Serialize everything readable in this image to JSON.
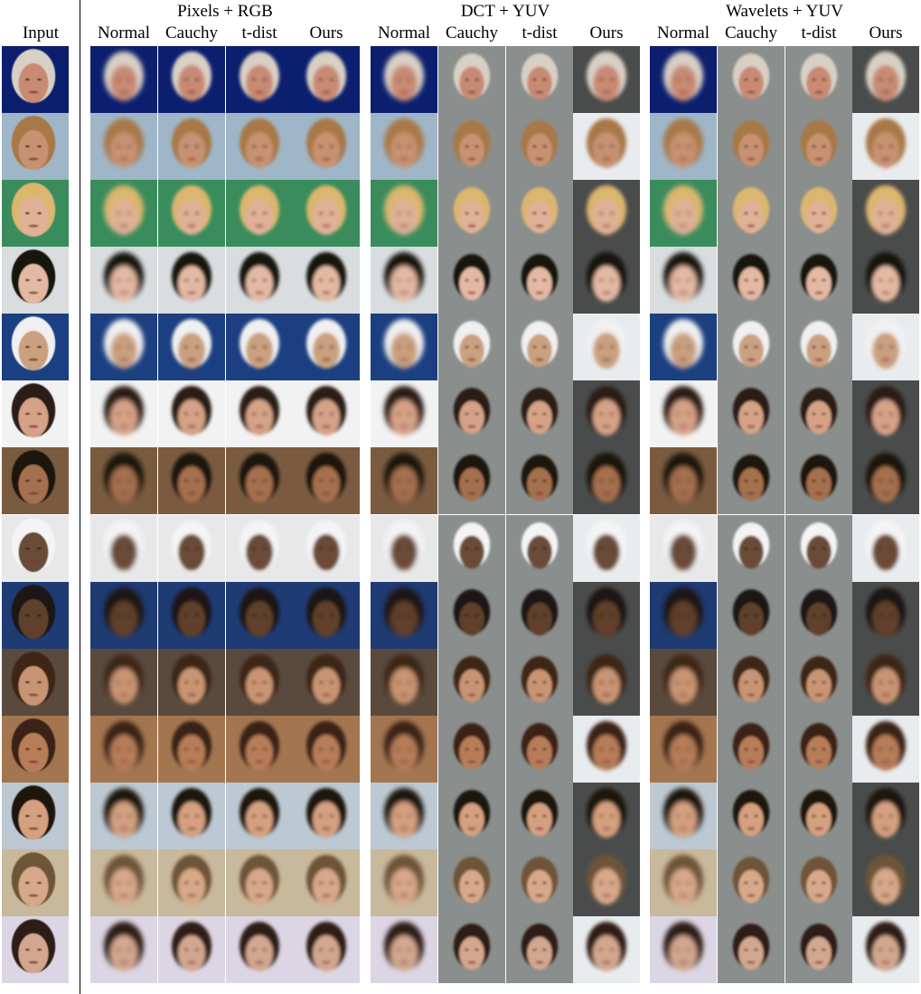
{
  "headers": {
    "input_label": "Input",
    "groups": [
      {
        "title": "Pixels + RGB",
        "columns": [
          "Normal",
          "Cauchy",
          "t-dist",
          "Ours"
        ]
      },
      {
        "title": "DCT + YUV",
        "columns": [
          "Normal",
          "Cauchy",
          "t-dist",
          "Ours"
        ]
      },
      {
        "title": "Wavelets + YUV",
        "columns": [
          "Normal",
          "Cauchy",
          "t-dist",
          "Ours"
        ]
      }
    ]
  },
  "rows": [
    {
      "bg": "#0b1f6e",
      "skin": "#c98a73",
      "hair": "#d8d0c4"
    },
    {
      "bg": "#9fb6c8",
      "skin": "#c89272",
      "hair": "#a87846"
    },
    {
      "bg": "#3a8c5c",
      "skin": "#e0b196",
      "hair": "#dab66e"
    },
    {
      "bg": "#d9dde0",
      "skin": "#e3b9a3",
      "hair": "#161210"
    },
    {
      "bg": "#1b3f80",
      "skin": "#caa07f",
      "hair": "#f0f0f0"
    },
    {
      "bg": "#f2f2f2",
      "skin": "#d6a287",
      "hair": "#2a1f19"
    },
    {
      "bg": "#7a5b40",
      "skin": "#a5704d",
      "hair": "#1a1410"
    },
    {
      "bg": "#e8e8e8",
      "skin": "#6b4b37",
      "hair": "#f4f4f4"
    },
    {
      "bg": "#1f3b73",
      "skin": "#5e3f2c",
      "hair": "#1d1714"
    },
    {
      "bg": "#5a4a3e",
      "skin": "#c99473",
      "hair": "#3c2618"
    },
    {
      "bg": "#a37650",
      "skin": "#b77d58",
      "hair": "#3a2316"
    },
    {
      "bg": "#bcc8d2",
      "skin": "#d4a080",
      "hair": "#1a1210"
    },
    {
      "bg": "#c8b89c",
      "skin": "#d8a88a",
      "hair": "#6e5538"
    },
    {
      "bg": "#dcd6e4",
      "skin": "#d3a78f",
      "hair": "#2e1f18"
    }
  ],
  "variants": {
    "gray_bg": "#8a8e8c",
    "white_bg": "#e9ecee"
  }
}
